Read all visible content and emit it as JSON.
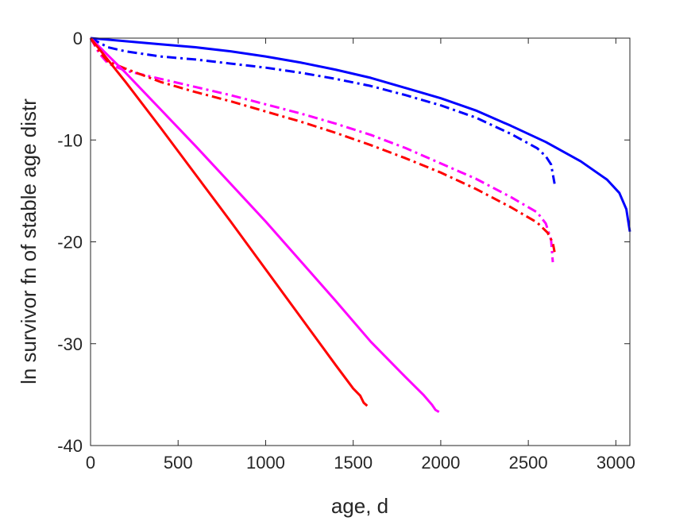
{
  "chart_data": {
    "type": "line",
    "title": "",
    "xlabel": "age, d",
    "ylabel": "ln survivor fn of stable age distr",
    "xlim": [
      0,
      3080
    ],
    "ylim": [
      -40,
      0
    ],
    "xticks": [
      0,
      500,
      1000,
      1500,
      2000,
      2500,
      3000
    ],
    "yticks": [
      0,
      -10,
      -20,
      -30,
      -40
    ],
    "xtick_labels": [
      "0",
      "500",
      "1000",
      "1500",
      "2000",
      "2500",
      "3000"
    ],
    "ytick_labels": [
      "0",
      "-10",
      "-20",
      "-30",
      "-40"
    ],
    "grid": false,
    "legend": "none",
    "series": [
      {
        "color": "#0000ff",
        "style": "solid",
        "x": [
          0,
          200,
          400,
          600,
          800,
          1000,
          1200,
          1400,
          1600,
          1800,
          2000,
          2200,
          2400,
          2600,
          2800,
          2950,
          3020,
          3060,
          3080
        ],
        "y": [
          0,
          -0.3,
          -0.6,
          -0.9,
          -1.3,
          -1.8,
          -2.4,
          -3.1,
          -3.9,
          -4.9,
          -5.9,
          -7.1,
          -8.6,
          -10.2,
          -12.1,
          -13.9,
          -15.2,
          -16.8,
          -19.0
        ]
      },
      {
        "color": "#0000ff",
        "style": "dashdot",
        "x": [
          0,
          100,
          200,
          400,
          600,
          800,
          1000,
          1200,
          1400,
          1600,
          1800,
          2000,
          2200,
          2400,
          2550,
          2600,
          2630,
          2650
        ],
        "y": [
          0,
          -0.9,
          -1.3,
          -1.8,
          -2.1,
          -2.5,
          -2.9,
          -3.4,
          -4.0,
          -4.7,
          -5.6,
          -6.6,
          -7.8,
          -9.4,
          -10.8,
          -11.6,
          -12.4,
          -14.3
        ]
      },
      {
        "color": "#ff00ff",
        "style": "dashdot",
        "x": [
          0,
          50,
          100,
          200,
          400,
          600,
          800,
          1000,
          1200,
          1400,
          1600,
          1800,
          2000,
          2200,
          2400,
          2550,
          2600,
          2630,
          2640
        ],
        "y": [
          0,
          -1.5,
          -2.5,
          -3.2,
          -4.0,
          -4.8,
          -5.6,
          -6.5,
          -7.4,
          -8.4,
          -9.5,
          -10.8,
          -12.3,
          -13.8,
          -15.6,
          -17.1,
          -18.2,
          -19.8,
          -22.0
        ]
      },
      {
        "color": "#ff0000",
        "style": "dashdot",
        "x": [
          0,
          50,
          100,
          200,
          400,
          600,
          800,
          1000,
          1200,
          1400,
          1600,
          1800,
          2000,
          2200,
          2400,
          2550,
          2610,
          2640,
          2650
        ],
        "y": [
          0,
          -1.3,
          -2.3,
          -3.0,
          -4.3,
          -5.3,
          -6.2,
          -7.2,
          -8.2,
          -9.3,
          -10.5,
          -11.8,
          -13.2,
          -14.8,
          -16.6,
          -18.1,
          -19.1,
          -20.1,
          -21.0
        ]
      },
      {
        "color": "#ff00ff",
        "style": "solid",
        "x": [
          0,
          200,
          400,
          600,
          800,
          1000,
          1200,
          1400,
          1600,
          1800,
          1900,
          1950,
          1970,
          1990
        ],
        "y": [
          0,
          -3.4,
          -7.0,
          -10.6,
          -14.3,
          -18.0,
          -21.9,
          -25.8,
          -29.8,
          -33.3,
          -35.0,
          -36.0,
          -36.5,
          -36.7
        ]
      },
      {
        "color": "#ff0000",
        "style": "solid",
        "x": [
          0,
          200,
          400,
          600,
          800,
          1000,
          1200,
          1400,
          1500,
          1540,
          1560,
          1580
        ],
        "y": [
          0,
          -4.3,
          -8.8,
          -13.4,
          -18.0,
          -22.7,
          -27.4,
          -32.1,
          -34.4,
          -35.1,
          -35.8,
          -36.1
        ]
      }
    ]
  }
}
